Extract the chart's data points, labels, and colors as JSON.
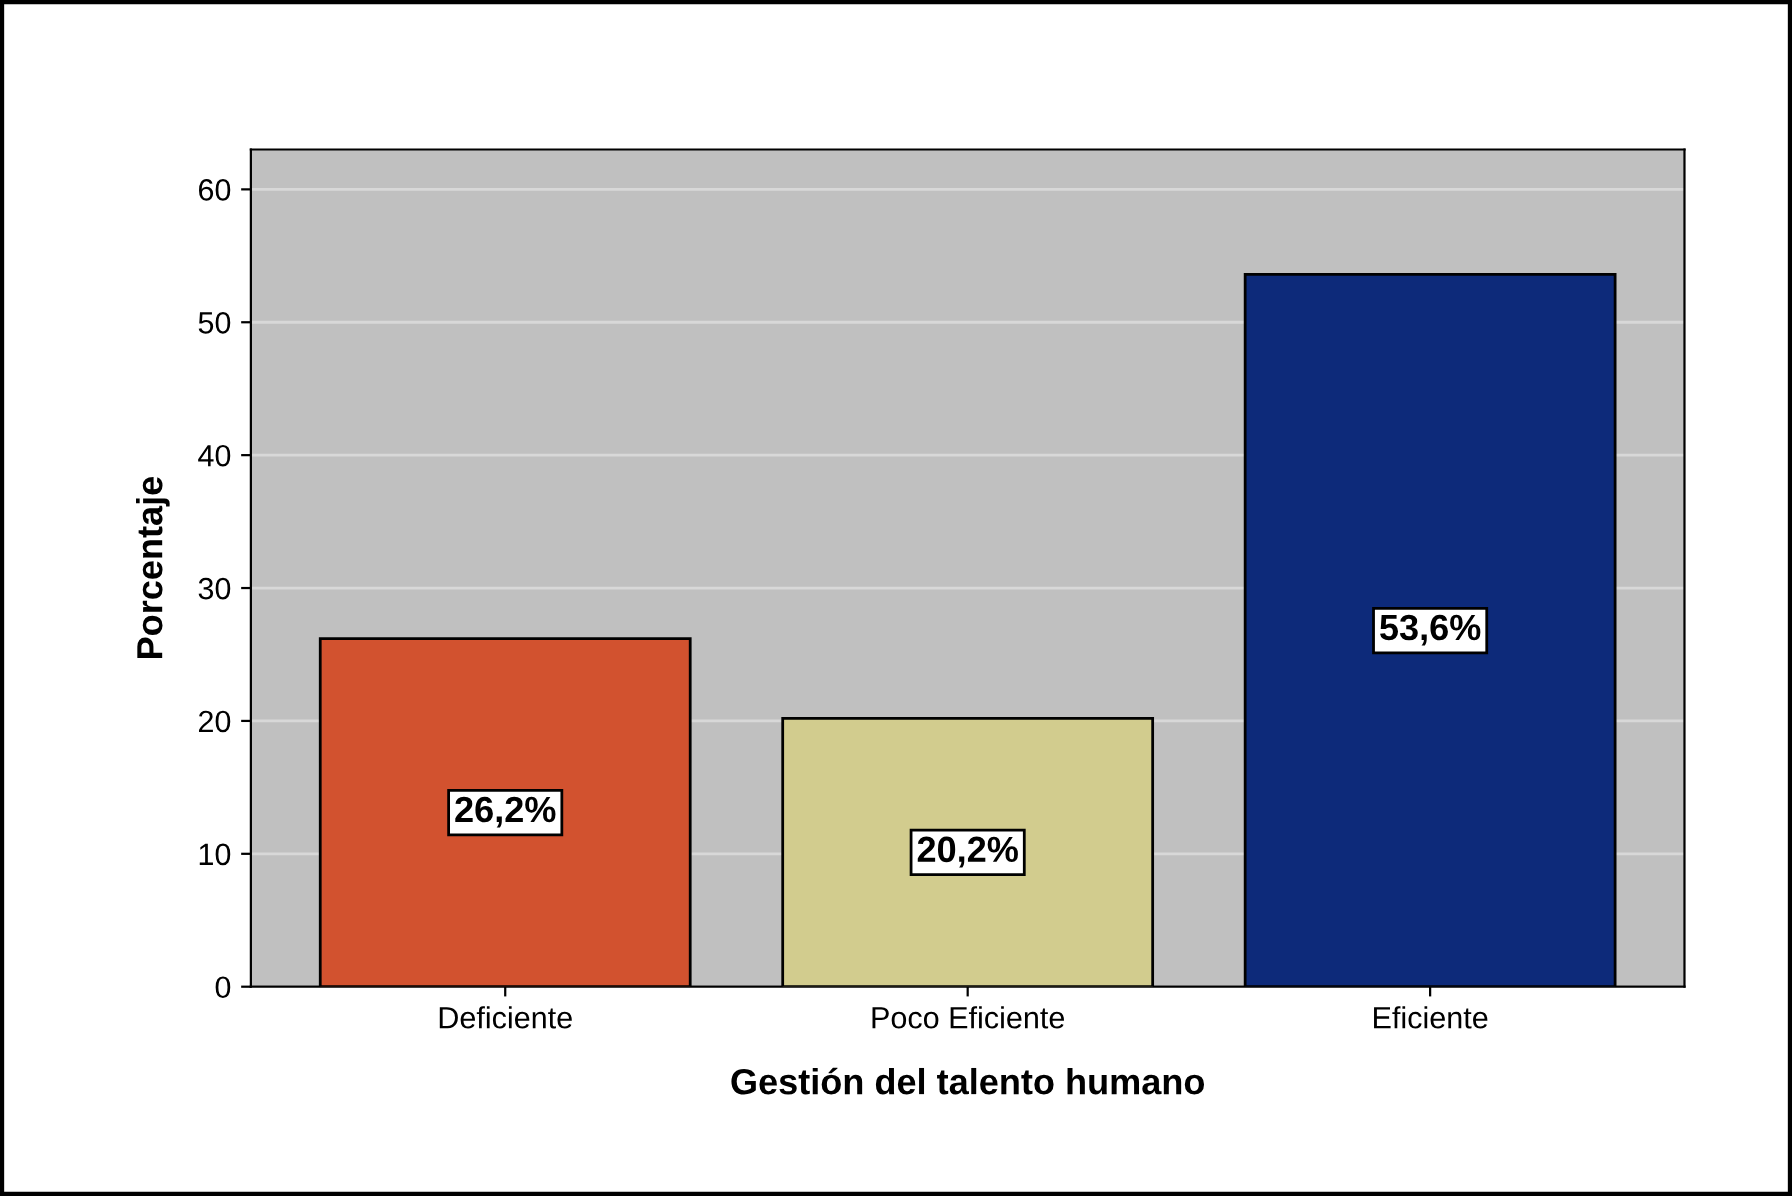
{
  "chart_data": {
    "type": "bar",
    "xlabel": "Gestión del talento humano",
    "ylabel": "Porcentaje",
    "categories": [
      "Deficiente",
      "Poco Eficiente",
      "Eficiente"
    ],
    "values": [
      26.2,
      20.2,
      53.6
    ],
    "value_labels": [
      "26,2%",
      "20,2%",
      "53,6%"
    ],
    "colors": [
      "#d2522f",
      "#d2cc8e",
      "#0d2a7a"
    ],
    "ylim": [
      0,
      63
    ],
    "yticks": [
      0,
      10,
      20,
      30,
      40,
      50,
      60
    ],
    "grid": "y"
  }
}
